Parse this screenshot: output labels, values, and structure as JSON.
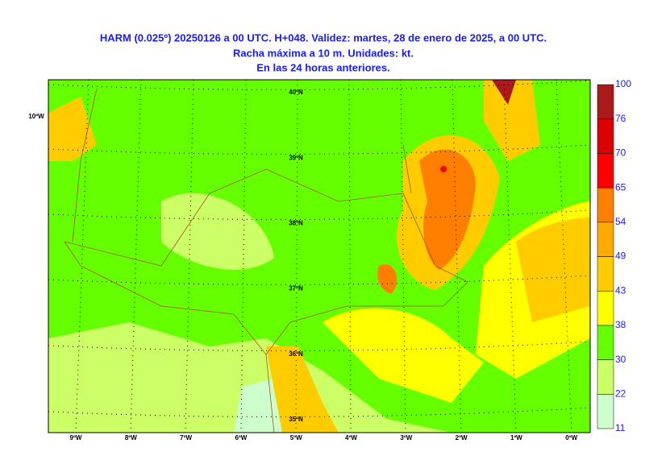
{
  "title": [
    "HARM (0.025º) 20250126 a 00 UTC. H+048. Validez: martes, 28 de enero de 2025, a 00 UTC.",
    "Racha máxima a 10 m. Unidades: kt.",
    "En las 24 horas anteriores."
  ],
  "map": {
    "extra_lon_label": "10ºW",
    "lon_labels": [
      "9ºW",
      "8ºW",
      "7ºW",
      "6ºW",
      "5ºW",
      "4ºW",
      "3ºW",
      "2ºW",
      "1ºW",
      "0ºW"
    ],
    "lat_labels": [
      "40ºN",
      "39ºN",
      "38ºN",
      "37ºN",
      "36ºN",
      "35ºN"
    ]
  },
  "legend": {
    "levels": [
      11,
      22,
      30,
      38,
      43,
      49,
      54,
      65,
      70,
      76,
      100
    ],
    "colors": [
      "#ccffcc",
      "#ccff66",
      "#66ff00",
      "#ffff00",
      "#ffcc00",
      "#ffaa00",
      "#ff8000",
      "#ff0000",
      "#dd0000",
      "#aa1a1a"
    ]
  }
}
